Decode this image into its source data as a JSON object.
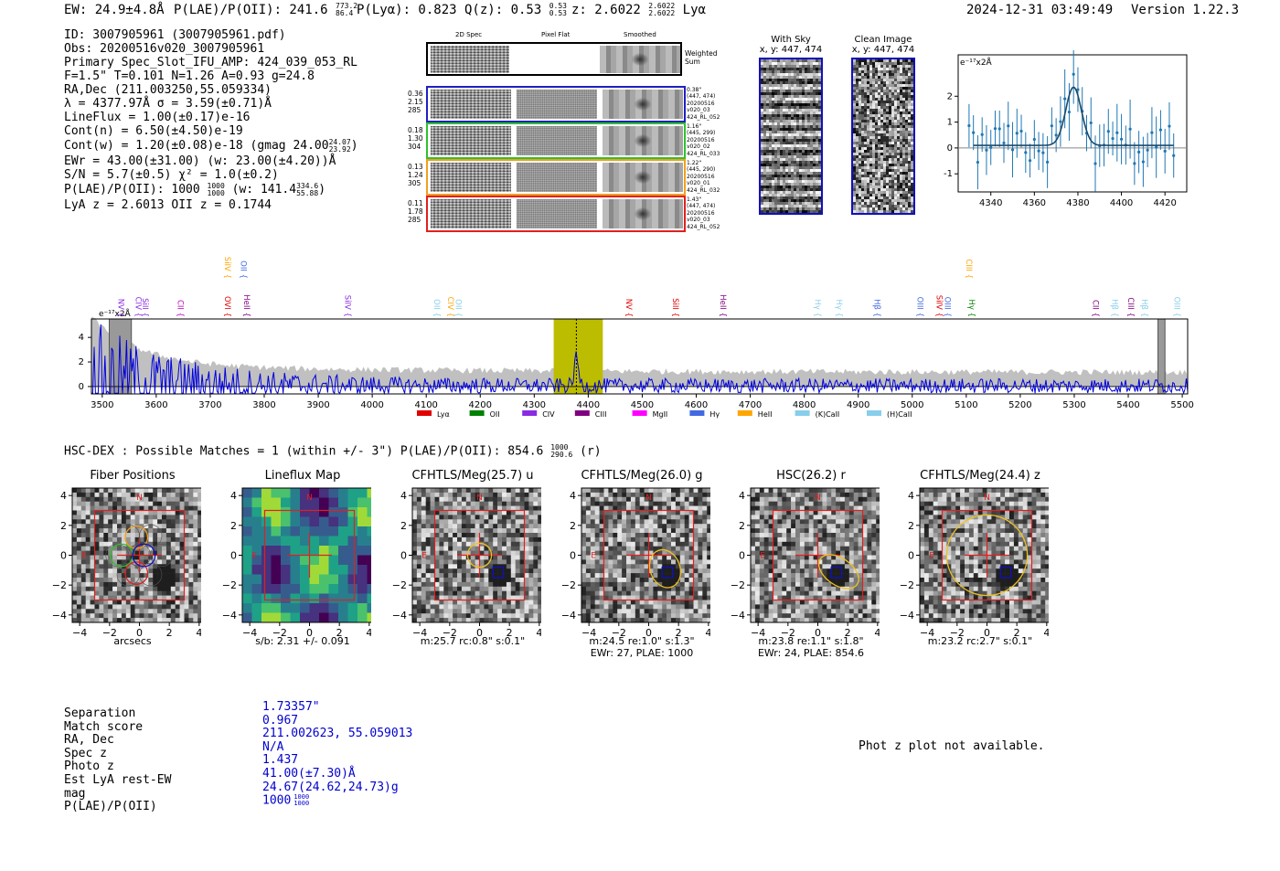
{
  "header": {
    "ew": "EW: 24.9±4.8Å",
    "plae_label": "P(LAE)/P(OII): 241.6",
    "plae_sup": "773.2",
    "plae_sub": "86.4",
    "plya": "P(Lyα): 0.823",
    "qz_label": "Q(z): 0.53",
    "qz_sup": "0.53",
    "qz_sub": "0.53",
    "z_label": "z: 2.6022",
    "z_sup": "2.6022",
    "z_sub": "2.6022",
    "z_line": "Lyα",
    "timestamp": "2024-12-31 03:49:49",
    "version": "Version 1.22.3"
  },
  "info": {
    "id": "ID: 3007905961 (3007905961.pdf)",
    "obs": "Obs: 20200516v020_3007905961",
    "primary": "Primary Spec_Slot_IFU_AMP: 424_039_053_RL",
    "fparams": "F=1.5\"  T=0.101  N=1.26  A=0.93  g=24.8",
    "radec": "RA,Dec (211.003250,55.059334)",
    "lambda": "λ = 4377.97Å   σ = 3.59(±0.71)Å",
    "lineflux": "LineFlux = 1.00(±0.17)e-16",
    "contn": "Cont(n) = 6.50(±4.50)e-19",
    "contw": "Cont(w) = 1.20(±0.08)e-18 (gmag 24.00",
    "contw_sup": "24.07",
    "contw_sub": "23.92",
    "contw_end": ")",
    "ewr": "EWr = 43.00(±31.00) (w: 23.00(±4.20))Å",
    "sn": "S/N = 5.7(±0.5)  χ² = 1.0(±0.2)",
    "plae": "P(LAE)/P(OII): 1000",
    "plae_sup": "1000",
    "plae_sub": "1000",
    "plae_w": "(w: 141.4",
    "plae_w_sup": "334.6",
    "plae_w_sub": "55.88",
    "plae_w_end": ")",
    "lyaz": "LyA z = 2.6013   OII z = 0.1744"
  },
  "cutouts": {
    "col_2d": "2D Spec",
    "col_flat": "Pixel Flat",
    "col_smooth": "Smoothed",
    "weighted": "Weighted Sum",
    "rows": [
      {
        "color": "#2020c0",
        "left": [
          "0.36",
          "2.15",
          "285"
        ],
        "right": [
          "0.38\"",
          "(447, 474)",
          "20200516",
          "v020_03",
          "424_RL_052"
        ]
      },
      {
        "color": "#30c030",
        "left": [
          "0.18",
          "1.30",
          "304"
        ],
        "right": [
          "1.16\"",
          "(445, 299)",
          "20200516",
          "v020_02",
          "424_RL_033"
        ]
      },
      {
        "color": "#f0a020",
        "left": [
          "0.13",
          "1.24",
          "305"
        ],
        "right": [
          "1.22\"",
          "(445, 290)",
          "20200516",
          "v020_01",
          "424_RL_032"
        ]
      },
      {
        "color": "#e02020",
        "left": [
          "0.11",
          "1.78",
          "285"
        ],
        "right": [
          "1.43\"",
          "(447, 474)",
          "20200516",
          "v020_03",
          "424_RL_052"
        ]
      }
    ]
  },
  "withsky": {
    "title": "With Sky",
    "coords": "x, y: 447, 474"
  },
  "clean": {
    "title": "Clean Image",
    "coords": "x, y: 447, 474"
  },
  "zoom_chart": {
    "ylabel": "e⁻¹⁷x2Å",
    "xticks": [
      "4340",
      "4360",
      "4380",
      "4400",
      "4420"
    ],
    "yticks": [
      "2",
      "1",
      "0",
      "-1"
    ]
  },
  "spectrum": {
    "ylabel": "e⁻¹⁷x2Å",
    "yticks": [
      "4",
      "2",
      "0"
    ],
    "xticks": [
      "3500",
      "3600",
      "3700",
      "3800",
      "3900",
      "4000",
      "4100",
      "4200",
      "4300",
      "4400",
      "4500",
      "4600",
      "4700",
      "4800",
      "4900",
      "5000",
      "5100",
      "5200",
      "5300",
      "5400",
      "5500"
    ],
    "legend": [
      {
        "name": "Lyα",
        "color": "#e00000"
      },
      {
        "name": "OII",
        "color": "#008000"
      },
      {
        "name": "CIV",
        "color": "#8a2be2"
      },
      {
        "name": "CIII",
        "color": "#800080"
      },
      {
        "name": "MgII",
        "color": "#ff00ff"
      },
      {
        "name": "Hγ",
        "color": "#4169e1"
      },
      {
        "name": "HeII",
        "color": "#ffa500"
      },
      {
        "name": "(K)CaII",
        "color": "#87ceeb"
      },
      {
        "name": "(H)CaII",
        "color": "#87ceeb"
      }
    ],
    "lines": [
      {
        "name": "NV",
        "w": 3525,
        "c": "#8a2be2",
        "row": 2
      },
      {
        "name": "CIV",
        "w": 3557,
        "c": "#8a2be2",
        "row": 2
      },
      {
        "name": "SiII",
        "w": 3570,
        "c": "#8a2be2",
        "row": 2
      },
      {
        "name": "CII",
        "w": 3635,
        "c": "#c000c0",
        "row": 2
      },
      {
        "name": "SiIV",
        "w": 3722,
        "c": "#ffa500",
        "row": 1
      },
      {
        "name": "OVI",
        "w": 3722,
        "c": "#e00000",
        "row": 2
      },
      {
        "name": "OII",
        "w": 3752,
        "c": "#4169e1",
        "row": 1
      },
      {
        "name": "HeII",
        "w": 3758,
        "c": "#800080",
        "row": 2
      },
      {
        "name": "SiIV",
        "w": 3945,
        "c": "#8a2be2",
        "row": 2
      },
      {
        "name": "OII",
        "w": 4110,
        "c": "#87ceeb",
        "row": 2
      },
      {
        "name": "CIV",
        "w": 4135,
        "c": "#ffa500",
        "row": 2
      },
      {
        "name": "OII",
        "w": 4150,
        "c": "#87ceeb",
        "row": 2
      },
      {
        "name": "NV",
        "w": 4465,
        "c": "#e00000",
        "row": 2
      },
      {
        "name": "SiII",
        "w": 4552,
        "c": "#e00000",
        "row": 2
      },
      {
        "name": "HeII",
        "w": 4640,
        "c": "#800080",
        "row": 2
      },
      {
        "name": "Hγ",
        "w": 4815,
        "c": "#87ceeb",
        "row": 2
      },
      {
        "name": "Hγ",
        "w": 4855,
        "c": "#87ceeb",
        "row": 2
      },
      {
        "name": "Hβ",
        "w": 4925,
        "c": "#4169e1",
        "row": 2
      },
      {
        "name": "OIII",
        "w": 5005,
        "c": "#4169e1",
        "row": 2
      },
      {
        "name": "SiIV",
        "w": 5040,
        "c": "#e00000",
        "row": 2
      },
      {
        "name": "OIII",
        "w": 5055,
        "c": "#4169e1",
        "row": 2
      },
      {
        "name": "CIII",
        "w": 5095,
        "c": "#ffa500",
        "row": 1
      },
      {
        "name": "Hγ",
        "w": 5100,
        "c": "#008000",
        "row": 2
      },
      {
        "name": "CII",
        "w": 5330,
        "c": "#800080",
        "row": 2
      },
      {
        "name": "Hβ",
        "w": 5365,
        "c": "#87ceeb",
        "row": 2
      },
      {
        "name": "CIII",
        "w": 5395,
        "c": "#800080",
        "row": 2
      },
      {
        "name": "Hβ",
        "w": 5420,
        "c": "#87ceeb",
        "row": 2
      },
      {
        "name": "OIII",
        "w": 5480,
        "c": "#87ceeb",
        "row": 2
      }
    ]
  },
  "hsc": {
    "title_a": "HSC-DEX : Possible Matches = 1 (within +/- 3\")   P(LAE)/P(OII): 854.6",
    "title_sup": "1000",
    "title_sub": "290.6",
    "title_end": "(r)"
  },
  "cutout_panels": [
    {
      "title": "Fiber Positions",
      "caption": [
        "arcsecs"
      ]
    },
    {
      "title": "Lineflux Map",
      "caption": [
        "s/b: 2.31 +/- 0.091"
      ]
    },
    {
      "title": "CFHTLS/Meg(25.7) u",
      "caption": [
        "m:25.7 rc:0.8\"  s:0.1\""
      ]
    },
    {
      "title": "CFHTLS/Meg(26.0) g",
      "caption": [
        "m:24.5  re:1.0\"  s:1.3\"",
        "EWr: 27, PLAE: 1000"
      ]
    },
    {
      "title": "HSC(26.2) r",
      "caption": [
        "m:23.8  re:1.1\"  s:1.8\"",
        "EWr: 24, PLAE: 854.6"
      ]
    },
    {
      "title": "CFHTLS/Meg(24.4) z",
      "caption": [
        "m:23.2 rc:2.7\"  s:0.1\""
      ]
    }
  ],
  "panel_axis": {
    "ticks": [
      "−4",
      "−2",
      "0",
      "2",
      "4"
    ],
    "n": "N",
    "e": "E"
  },
  "match": {
    "labels": [
      "Separation",
      "Match score",
      "RA, Dec",
      "Spec z",
      "Photo z",
      "Est LyA rest-EW",
      "mag",
      "P(LAE)/P(OII)"
    ],
    "values": [
      "1.73357\"",
      "0.967",
      "211.002623, 55.059013",
      "N/A",
      "1.437",
      "41.00(±7.30)Å",
      "24.67(24.62,24.73)g",
      "1000"
    ],
    "plae_sup": "1000",
    "plae_sub": "1000"
  },
  "photz_msg": "Phot z plot not available.",
  "colors": {
    "fiber_blue": "#1010c0",
    "spectrum_blue": "#0000dd",
    "highlight": "#bcbc00",
    "error_grey": "#c0c0c0",
    "frame_red": "#e02020",
    "zoom_blue": "#1f77b4"
  }
}
